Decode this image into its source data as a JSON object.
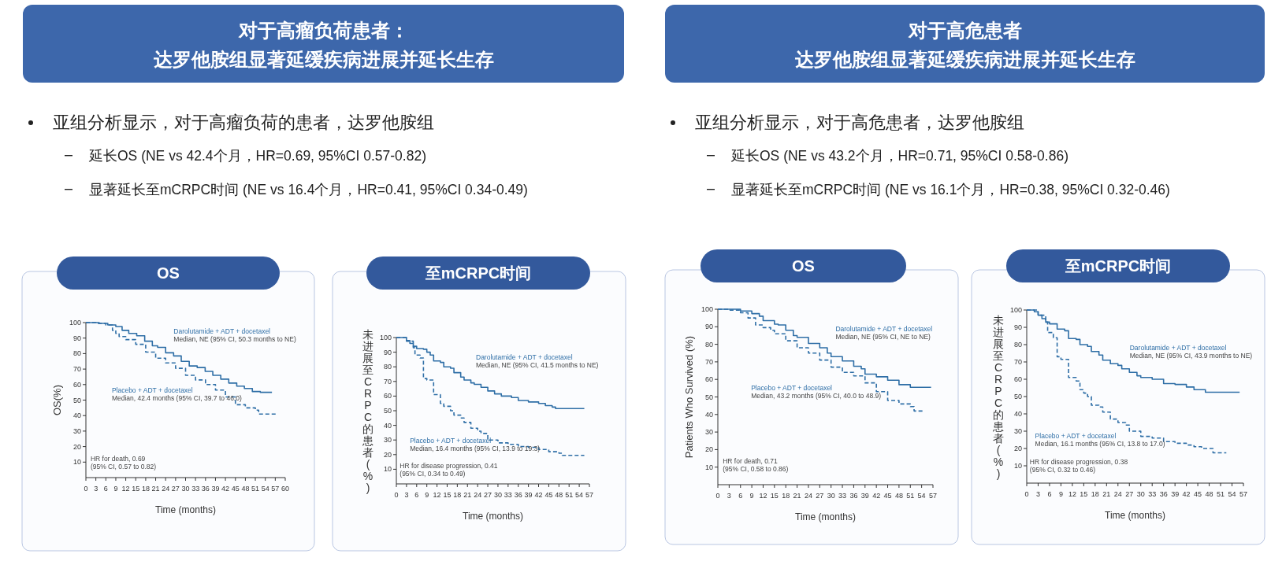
{
  "chart_data": [
    {
      "type": "other",
      "title": "对于高瘤负荷患者：",
      "subtitle": "达罗他胺组显著延缓疾病进展并延长生存",
      "annotations": [
        "亚组分析显示，对于高瘤负荷的患者，达罗他胺组",
        "延长OS (NE vs 42.4个月，HR=0.69, 95%CI 0.57-0.82)",
        "显著延长至mCRPC时间 (NE vs 16.4个月，HR=0.41, 95%CI 0.34-0.49)"
      ]
    },
    {
      "type": "other",
      "title": "对于高危患者",
      "subtitle": "达罗他胺组显著延缓疾病进展并延长生存",
      "annotations": [
        "亚组分析显示，对于高危患者，达罗他胺组",
        "延长OS (NE vs 43.2个月，HR=0.71, 95%CI 0.58-0.86)",
        "显著延长至mCRPC时间 (NE vs 16.1个月，HR=0.38, 95%CI 0.32-0.46)"
      ]
    },
    {
      "type": "step",
      "title": "OS",
      "xlabel": "Time (months)",
      "ylabel": "OS(%)",
      "xlim": [
        0,
        60
      ],
      "ylim": [
        0,
        100
      ],
      "xticks": [
        0,
        3,
        6,
        9,
        12,
        15,
        18,
        21,
        24,
        27,
        30,
        33,
        36,
        39,
        42,
        45,
        48,
        51,
        54,
        57,
        60
      ],
      "yticks": [
        10,
        20,
        30,
        40,
        50,
        60,
        70,
        80,
        90,
        100
      ],
      "annotations": [
        "Median, NE (95% CI, 50.3 months to NE)",
        "Median, 42.4 months (95% CI, 39.7 to 46.0)",
        "HR for death, 0.69",
        "(95% CI, 0.57 to 0.82)"
      ],
      "series": [
        {
          "name": "Darolutamide + ADT + docetaxel",
          "color": "#2e6ea6",
          "line_style": "solid",
          "x": [
            0,
            4,
            6.6,
            9,
            10.9,
            12.9,
            15.3,
            17.7,
            20,
            21.6,
            24,
            26.4,
            28.7,
            31.1,
            33.5,
            35.9,
            38.2,
            40.6,
            43,
            45.4,
            47.7,
            50.1,
            52.5,
            56
          ],
          "values": [
            100,
            99.5,
            98.5,
            97.5,
            95,
            93,
            91.5,
            88,
            85,
            84,
            80.5,
            78.5,
            75,
            72,
            71,
            68.5,
            66,
            63.5,
            61,
            59,
            57.5,
            55.5,
            55,
            55
          ]
        },
        {
          "name": "Placebo + ADT + docetaxel",
          "color": "#2e6ea6",
          "line_style": "dashed",
          "x": [
            0,
            3,
            6,
            8,
            9,
            10,
            12,
            15,
            18,
            21,
            24,
            27,
            30,
            33,
            36,
            39,
            42,
            45,
            48,
            51,
            52,
            57.5
          ],
          "values": [
            100,
            99.5,
            98.5,
            95,
            93,
            91,
            89,
            86,
            81,
            77,
            74,
            70.5,
            66,
            63,
            60,
            56.5,
            52,
            47,
            45,
            43.5,
            41,
            41
          ]
        }
      ]
    },
    {
      "type": "step",
      "title": "至mCRPC时间",
      "xlabel": "Time (months)",
      "ylabel": "未进展至CRPC的患者(%)",
      "xlim": [
        0,
        57
      ],
      "ylim": [
        0,
        100
      ],
      "xticks": [
        0,
        3,
        6,
        9,
        12,
        15,
        18,
        21,
        24,
        27,
        30,
        33,
        36,
        39,
        42,
        45,
        48,
        51,
        54,
        57
      ],
      "yticks": [
        10,
        20,
        30,
        40,
        50,
        60,
        70,
        80,
        90,
        100
      ],
      "annotations": [
        "Median, NE (95% CI, 41.5 months to NE)",
        "Median, 16.4 months (95% CI, 13.9 to 19.3)",
        "HR for disease progression, 0.41",
        "(95% CI, 0.34 to 0.49)"
      ],
      "series": [
        {
          "name": "Darolutamide + ADT + docetaxel",
          "color": "#2e6ea6",
          "line_style": "solid",
          "x": [
            0,
            2,
            3,
            4,
            5,
            6,
            8,
            9,
            10,
            11,
            13,
            14,
            16,
            17,
            19,
            20,
            22,
            23,
            25,
            27,
            29,
            31,
            34,
            36,
            39,
            42,
            44,
            46,
            47,
            55.5
          ],
          "values": [
            100,
            100,
            98,
            96,
            94,
            92.5,
            92,
            90,
            88,
            84,
            83,
            80,
            79,
            76,
            73,
            71,
            69,
            68,
            66,
            63.5,
            61.5,
            60,
            59,
            57,
            56,
            55,
            53.5,
            52.5,
            51.5,
            51.5
          ]
        },
        {
          "name": "Placebo + ADT + docetaxel",
          "color": "#2e6ea6",
          "line_style": "dashed",
          "x": [
            0,
            3,
            5,
            5.5,
            7,
            8,
            9,
            11,
            13,
            14,
            16,
            17,
            19,
            20,
            22,
            24,
            25,
            27,
            30,
            33,
            36,
            39,
            42,
            45,
            48,
            49,
            55.5
          ],
          "values": [
            100,
            97.5,
            93,
            88,
            86,
            72,
            71,
            61,
            55,
            53,
            50,
            47,
            45,
            42,
            38,
            36,
            34.5,
            30,
            28,
            27,
            25.5,
            25,
            23.5,
            22,
            21,
            19.5,
            19.5
          ]
        }
      ]
    },
    {
      "type": "step",
      "title": "OS",
      "xlabel": "Time (months)",
      "ylabel": "Patients Who Survived (%)",
      "xlim": [
        0,
        57
      ],
      "ylim": [
        0,
        100
      ],
      "xticks": [
        0,
        3,
        6,
        9,
        12,
        15,
        18,
        21,
        24,
        27,
        30,
        33,
        36,
        39,
        42,
        45,
        48,
        51,
        54,
        57
      ],
      "yticks": [
        10,
        20,
        30,
        40,
        50,
        60,
        70,
        80,
        90,
        100
      ],
      "annotations": [
        "Median, NE (95% CI, NE to NE)",
        "Median, 43.2 months (95% CI, 40.0 to 48.9)",
        "HR for death, 0.71",
        "(95% CI, 0.58 to 0.86)"
      ],
      "series": [
        {
          "name": "Darolutamide + ADT + docetaxel",
          "color": "#2e6ea6",
          "line_style": "solid",
          "x": [
            0,
            3,
            6,
            9,
            11,
            12,
            15,
            16,
            18,
            20,
            21,
            24,
            27,
            29,
            30,
            33,
            36,
            38,
            39,
            42,
            45,
            48,
            51,
            56.5
          ],
          "values": [
            100,
            100,
            99,
            97.5,
            96,
            93.5,
            91.5,
            91,
            88,
            85,
            84,
            80.5,
            78,
            75,
            73,
            70.5,
            67.5,
            66,
            63,
            61.5,
            59.5,
            57,
            55.5,
            55.5
          ]
        },
        {
          "name": "Placebo + ADT + docetaxel",
          "color": "#2e6ea6",
          "line_style": "dashed",
          "x": [
            0,
            3,
            6,
            8,
            10,
            12,
            14,
            15,
            18,
            21,
            24,
            27,
            30,
            33,
            36,
            39,
            42,
            45,
            48,
            51,
            52,
            54.5
          ],
          "values": [
            100,
            99.5,
            98,
            95,
            91,
            89.5,
            88,
            86,
            82,
            78,
            75,
            71,
            67,
            64,
            62,
            58,
            53,
            48,
            46,
            44.5,
            42,
            42
          ]
        }
      ]
    },
    {
      "type": "step",
      "title": "至mCRPC时间",
      "xlabel": "Time (months)",
      "ylabel": "未进展至CRPC的患者(%)",
      "xlim": [
        0,
        57
      ],
      "ylim": [
        0,
        100
      ],
      "xticks": [
        0,
        3,
        6,
        9,
        12,
        15,
        18,
        21,
        24,
        27,
        30,
        33,
        36,
        39,
        42,
        45,
        48,
        51,
        54,
        57
      ],
      "yticks": [
        10,
        20,
        30,
        40,
        50,
        60,
        70,
        80,
        90,
        100
      ],
      "annotations": [
        "Median, NE (95% CI, 43.9 months to NE)",
        "Median, 16.1 months (95% CI, 13.8 to 17.0)",
        "HR for disease progression, 0.38",
        "(95% CI, 0.32 to 0.46)"
      ],
      "series": [
        {
          "name": "Darolutamide + ADT + docetaxel",
          "color": "#2e6ea6",
          "line_style": "solid",
          "x": [
            0,
            2,
            3,
            4,
            5,
            6,
            8,
            10,
            11,
            13,
            14,
            16,
            17,
            19,
            20,
            22,
            24,
            25,
            27,
            29,
            30,
            33,
            36,
            39,
            42,
            44,
            47,
            56
          ],
          "values": [
            100,
            99,
            97,
            95,
            93,
            92,
            89,
            88,
            83.5,
            83,
            80,
            79,
            76,
            74,
            71,
            69,
            68,
            66,
            64,
            62,
            61,
            60,
            57.5,
            57,
            55.5,
            54,
            52.5,
            52.5
          ]
        },
        {
          "name": "Placebo + ADT + docetaxel",
          "color": "#2e6ea6",
          "line_style": "dashed",
          "x": [
            0,
            3,
            5,
            5.5,
            7,
            8,
            9,
            11,
            13,
            14,
            15,
            16,
            17,
            19,
            20,
            22,
            24,
            26,
            27,
            30,
            33,
            36,
            39,
            42,
            44,
            46,
            49,
            52.5
          ],
          "values": [
            100,
            97,
            93,
            87,
            84,
            73,
            71.5,
            61,
            59,
            54,
            52,
            50,
            45,
            44,
            41,
            37,
            35,
            33.5,
            30,
            27,
            26,
            24,
            23,
            22,
            21,
            20,
            17.5,
            17.5
          ]
        }
      ]
    }
  ]
}
